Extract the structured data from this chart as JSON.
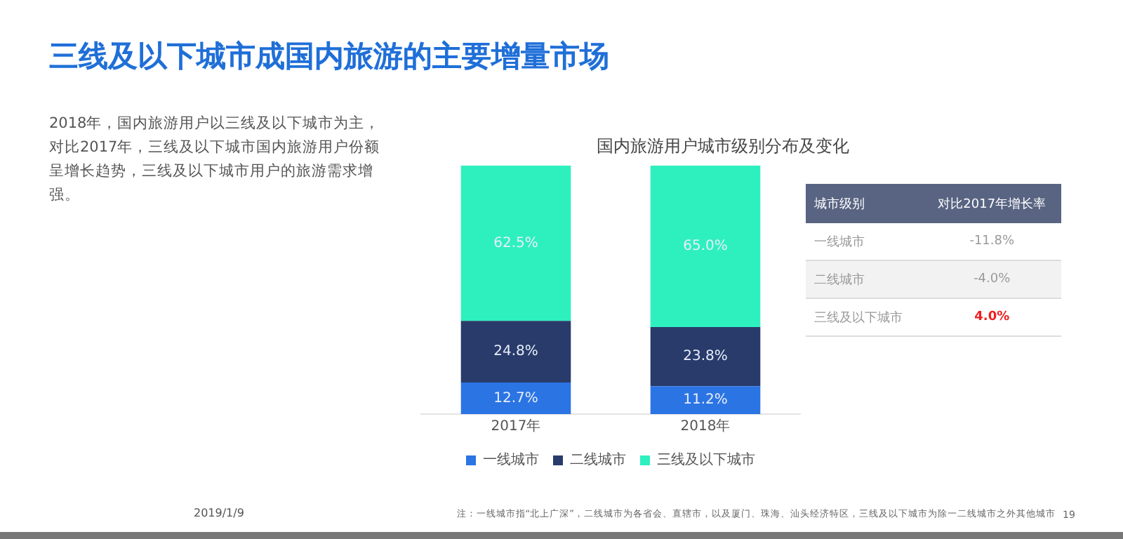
{
  "chart_data": [
    {
      "type": "bar",
      "title": "国内旅游用户城市级别分布及变化",
      "categories": [
        "2017年",
        "2018年"
      ],
      "stacked": true,
      "legend": "bottom",
      "grid": false,
      "series": [
        {
          "name": "一线城市",
          "color": "#2b74e4",
          "values": [
            12.7,
            11.2
          ],
          "value_labels": [
            "12.7%",
            "11.2%"
          ]
        },
        {
          "name": "二线城市",
          "color": "#283b6b",
          "values": [
            24.8,
            23.8
          ],
          "value_labels": [
            "24.8%",
            "23.8%"
          ]
        },
        {
          "name": "三线及以下城市",
          "color": "#2ef0bf",
          "values": [
            62.5,
            65.0
          ],
          "value_labels": [
            "62.5%",
            "65.0%"
          ]
        }
      ],
      "annotations": [
        "三线及以下城市成国内旅游的主要增量市场",
        "2018年，国内旅游用户以三线及以下城市为主，对比2017年，三线及以下城市国内旅游用户份额呈增长趋势，三线及以下城市用户的旅游需求增强。",
        "2019/1/9",
        "注：一线城市指“北上广深”，二线城市为各省会、直辖市，以及厦门、珠海、汕头经济特区，三线及以下城市为除一二线城市之外其他城市",
        "19"
      ]
    },
    {
      "type": "other",
      "categories": [
        "一线城市",
        "二线城市",
        "三线及以下城市"
      ],
      "values": [
        -11.8,
        -4.0,
        4.0
      ],
      "value_labels": [
        "-11.8%",
        "-4.0%",
        "4.0%"
      ],
      "annotations": [
        "城市级别",
        "对比2017年增长率"
      ]
    }
  ]
}
